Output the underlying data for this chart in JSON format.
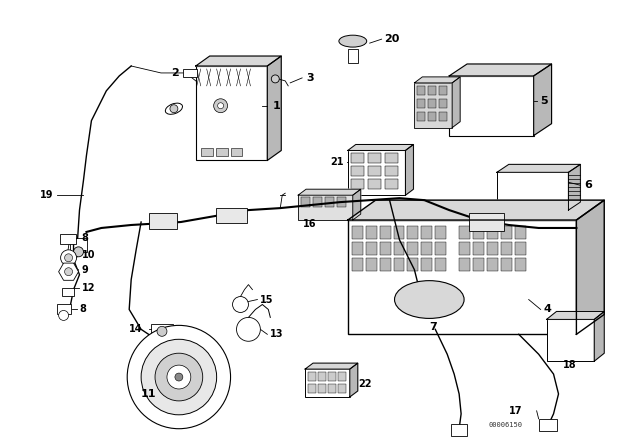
{
  "bg_color": "#ffffff",
  "line_color": "#000000",
  "fig_width": 6.4,
  "fig_height": 4.48,
  "dpi": 100,
  "watermark": "00006150",
  "gray_light": "#e0e0e0",
  "gray_mid": "#c0c0c0",
  "gray_dark": "#a0a0a0"
}
